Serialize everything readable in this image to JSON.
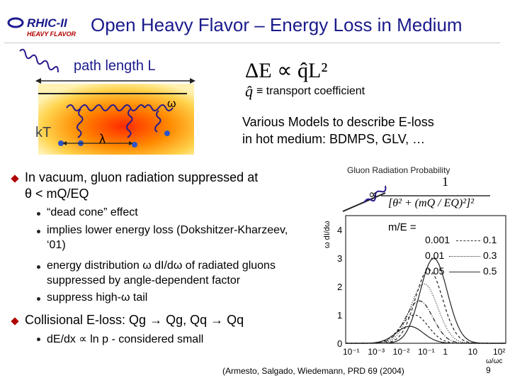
{
  "header": {
    "title": "Open Heavy Flavor – Energy Loss in Medium",
    "logo_text_top": "RHIC-II",
    "logo_text_bottom": "HEAVY FLAVOR"
  },
  "diagram": {
    "path_length_label": "path length L",
    "kt_label": "kT",
    "lambda_label": "λ",
    "omega_label": "ω"
  },
  "formula": {
    "energy_loss": "ΔE ∝ q̂L²",
    "transport_symbol": "q̂",
    "transport_text": "≡ transport coefficient"
  },
  "models": {
    "line1": "Various Models to describe E-loss",
    "line2": "in hot medium:  BDMPS, GLV, …"
  },
  "bullets": {
    "main1_line1": "In vacuum, gluon radiation suppressed at",
    "main1_line2": "θ < mQ/EQ",
    "sub1": "“dead cone” effect",
    "sub2_line1": "implies lower energy loss (Dokshitzer-Kharzeev,",
    "sub2_line2": "‘01)",
    "sub3_line1": "energy distribution ω dI/dω of radiated gluons",
    "sub3_line2": "suppressed by angle-dependent factor",
    "sub4": "suppress high-ω tail",
    "main2": "Collisional E-loss: Qg → Qg, Qq → Qq",
    "sub5": "dE/dx ∝ ln p  - considered small"
  },
  "gluon_box": {
    "title": "Gluon Radiation Probability",
    "numerator": "1",
    "denominator": "[θ² + (mQ / EQ)²]²",
    "prop": "∝"
  },
  "chart": {
    "y_axis_label": "ω dI/dω",
    "x_axis_label": "ω/ωc",
    "legend_title": "m/E =",
    "legend_rows": [
      {
        "left": "0.001",
        "right": "0.1"
      },
      {
        "left": "0.01",
        "right": "0.3"
      },
      {
        "left": "0.05",
        "right": "0.5"
      }
    ],
    "y_ticks": [
      "0",
      "1",
      "2",
      "3",
      "4"
    ],
    "x_ticks": [
      "10⁻¹",
      "10⁻³",
      "10⁻²",
      "10⁻¹",
      "1",
      "10",
      "10²"
    ]
  },
  "chart_data": {
    "type": "line",
    "xlabel": "ω/ωc",
    "ylabel": "ω dI/dω",
    "ylim": [
      0,
      4.5
    ],
    "x_scale": "log",
    "legend_title": "m/E =",
    "legend_entries": [
      "0.001",
      "0.1",
      "0.01",
      "0.3",
      "0.05",
      "0.5"
    ]
  },
  "footer": {
    "citation": "(Armesto, Salgado, Wiedemann,  PRD 69 (2004)",
    "page_number": "9"
  }
}
